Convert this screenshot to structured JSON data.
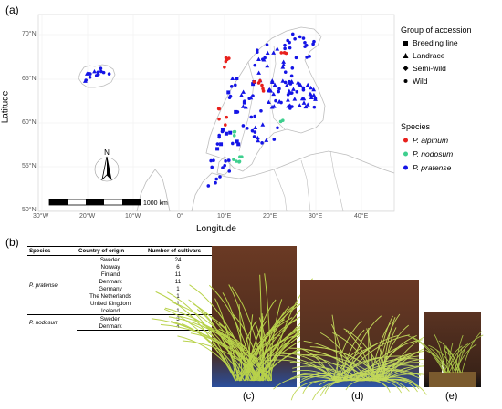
{
  "figure": {
    "panel_a_label": "(a)",
    "panel_b_label": "(b)",
    "panel_c_label": "(c)",
    "panel_d_label": "(d)",
    "panel_e_label": "(e)"
  },
  "map": {
    "xlabel": "Longitude",
    "ylabel": "Latitude",
    "lat_ticks": [
      "70°N",
      "65°N",
      "60°N",
      "55°N",
      "50°N"
    ],
    "lon_ticks": [
      "30°W",
      "20°W",
      "10°W",
      "0°",
      "10°E",
      "20°E",
      "30°E",
      "40°E"
    ],
    "scale_label": "1000 km",
    "north_label": "N",
    "colors": {
      "alpinum": "#e8201c",
      "nodosum": "#3ecf8e",
      "pratense": "#1414e6",
      "border": "#bdbdbd",
      "grid": "#eeeeee"
    },
    "legend_group": {
      "title": "Group of accession",
      "items": [
        {
          "label": "Breeding line",
          "shape": "square"
        },
        {
          "label": "Landrace",
          "shape": "triangle"
        },
        {
          "label": "Semi-wild",
          "shape": "diamond"
        },
        {
          "label": "Wild",
          "shape": "circle"
        }
      ]
    },
    "legend_species": {
      "title": "Species",
      "items": [
        {
          "label": "P. alpinum",
          "color": "#e8201c"
        },
        {
          "label": "P. nodosum",
          "color": "#3ecf8e"
        },
        {
          "label": "P. pratense",
          "color": "#1414e6"
        }
      ]
    }
  },
  "table": {
    "headers": [
      "Species",
      "Country of origin",
      "Number of cultivars"
    ],
    "groups": [
      {
        "species": "P. pratense",
        "rows": [
          {
            "country": "Sweden",
            "n": "24"
          },
          {
            "country": "Norway",
            "n": "6"
          },
          {
            "country": "Finland",
            "n": "11"
          },
          {
            "country": "Denmark",
            "n": "11"
          },
          {
            "country": "Germany",
            "n": "1"
          },
          {
            "country": "The Netherlands",
            "n": "1"
          },
          {
            "country": "United Kingdom",
            "n": "1"
          },
          {
            "country": "Iceland",
            "n": "1"
          }
        ]
      },
      {
        "species": "P. nodosum",
        "rows": [
          {
            "country": "Sweden",
            "n": "3"
          },
          {
            "country": "Denmark",
            "n": "4"
          }
        ]
      }
    ]
  }
}
